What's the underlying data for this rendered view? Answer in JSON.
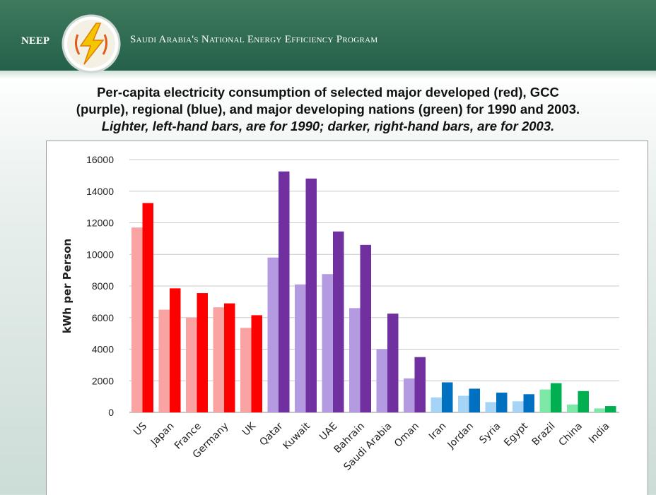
{
  "header": {
    "brand": "NEEP",
    "program": "Saudi Arabia's National Energy Efficiency Program"
  },
  "title_lines": [
    "Per-capita electricity consumption of selected major developed (red), GCC",
    "(purple), regional (blue), and major developing nations (green) for 1990 and 2003.",
    "Lighter, left-hand bars, are for 1990; darker, right-hand bars, are for 2003."
  ],
  "chart_data": {
    "type": "bar",
    "ylabel": "kWh per Person",
    "xlabel": "",
    "ylim": [
      0,
      16000
    ],
    "yticks": [
      "0",
      "2000",
      "4000",
      "6000",
      "8000",
      "10000",
      "12000",
      "14000",
      "16000"
    ],
    "grid": true,
    "categories": [
      "US",
      "Japan",
      "France",
      "Germany",
      "UK",
      "Qatar",
      "Kuwait",
      "UAE",
      "Bahrain",
      "Saudi Arabia",
      "Oman",
      "Iran",
      "Jordan",
      "Syria",
      "Egypt",
      "Brazil",
      "China",
      "India"
    ],
    "groups": [
      "developed",
      "developed",
      "developed",
      "developed",
      "developed",
      "gcc",
      "gcc",
      "gcc",
      "gcc",
      "gcc",
      "gcc",
      "regional",
      "regional",
      "regional",
      "regional",
      "developing",
      "developing",
      "developing"
    ],
    "series": [
      {
        "values": [
          11700,
          6500,
          6000,
          6650,
          5350,
          9800,
          8100,
          8750,
          6600,
          4000,
          2150,
          950,
          1050,
          650,
          700,
          1450,
          500,
          250
        ]
      },
      {
        "values": [
          13250,
          7850,
          7550,
          6900,
          6150,
          15250,
          14800,
          11450,
          10600,
          6250,
          3500,
          1900,
          1500,
          1250,
          1150,
          1850,
          1350,
          400
        ]
      }
    ],
    "colors": {
      "developed": [
        "#f9a3a3",
        "#ff0000"
      ],
      "gcc": [
        "#b49ae0",
        "#7030a0"
      ],
      "regional": [
        "#a6d4f6",
        "#0070c0"
      ],
      "developing": [
        "#7ee8a8",
        "#00b050"
      ]
    }
  }
}
